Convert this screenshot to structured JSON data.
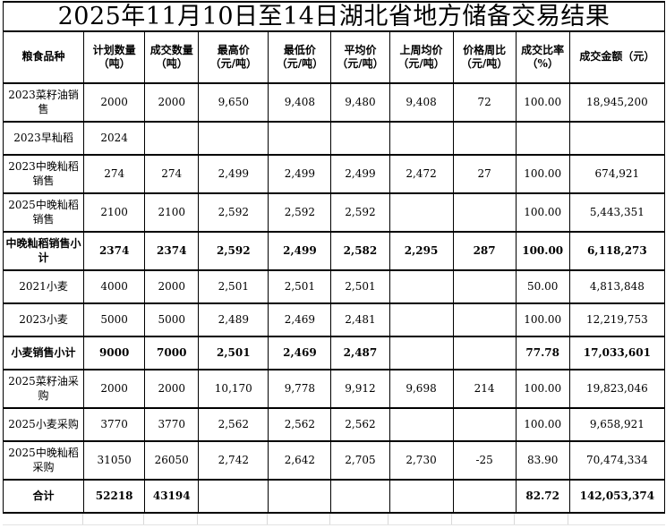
{
  "title": "2025年11月10日至14日湖北省地方储备交易结果",
  "table": {
    "columns": [
      "粮食品种",
      "计划数量\n（吨）",
      "成交数量\n（吨）",
      "最高价\n（元/吨）",
      "最低价\n（元/吨）",
      "平均价\n（元/吨）",
      "上周均价\n（元/吨）",
      "价格周比\n（元/吨）",
      "成交比率\n（%）",
      "成交金额（元）"
    ],
    "rows": [
      {
        "bold": false,
        "cells": [
          "2023菜籽油销售",
          "2000",
          "2000",
          "9,650",
          "9,408",
          "9,480",
          "9,408",
          "72",
          "100.00",
          "18,945,200"
        ]
      },
      {
        "bold": false,
        "cells": [
          "2023早籼稻",
          "2024",
          "",
          "",
          "",
          "",
          "",
          "",
          "",
          ""
        ]
      },
      {
        "bold": false,
        "cells": [
          "2023中晚籼稻销售",
          "274",
          "274",
          "2,499",
          "2,499",
          "2,499",
          "2,472",
          "27",
          "100.00",
          "674,921"
        ]
      },
      {
        "bold": false,
        "cells": [
          "2025中晚籼稻销售",
          "2100",
          "2100",
          "2,592",
          "2,592",
          "2,592",
          "",
          "",
          "100.00",
          "5,443,351"
        ]
      },
      {
        "bold": true,
        "cells": [
          "中晚籼稻销售小计",
          "2374",
          "2374",
          "2,592",
          "2,499",
          "2,582",
          "2,295",
          "287",
          "100.00",
          "6,118,273"
        ]
      },
      {
        "bold": false,
        "cells": [
          "2021小麦",
          "4000",
          "2000",
          "2,501",
          "2,501",
          "2,501",
          "",
          "",
          "50.00",
          "4,813,848"
        ]
      },
      {
        "bold": false,
        "cells": [
          "2023小麦",
          "5000",
          "5000",
          "2,489",
          "2,469",
          "2,481",
          "",
          "",
          "100.00",
          "12,219,753"
        ]
      },
      {
        "bold": true,
        "cells": [
          "小麦销售小计",
          "9000",
          "7000",
          "2,501",
          "2,469",
          "2,487",
          "",
          "",
          "77.78",
          "17,033,601"
        ]
      },
      {
        "bold": false,
        "cells": [
          "2025菜籽油采购",
          "2000",
          "2000",
          "10,170",
          "9,778",
          "9,912",
          "9,698",
          "214",
          "100.00",
          "19,823,046"
        ]
      },
      {
        "bold": false,
        "cells": [
          "2025小麦采购",
          "3770",
          "3770",
          "2,562",
          "2,562",
          "2,562",
          "",
          "",
          "100.00",
          "9,658,921"
        ]
      },
      {
        "bold": false,
        "cells": [
          "2025中晚籼稻采购",
          "31050",
          "26050",
          "2,742",
          "2,642",
          "2,705",
          "2,730",
          "-25",
          "83.90",
          "70,474,334"
        ]
      },
      {
        "bold": true,
        "cells": [
          "合计",
          "52218",
          "43194",
          "",
          "",
          "",
          "",
          "",
          "82.72",
          "142,053,374"
        ]
      }
    ]
  },
  "colors": {
    "grid": "#000000",
    "background": "#ffffff",
    "text": "#000000",
    "faint_grid": "#d9d9d9"
  }
}
